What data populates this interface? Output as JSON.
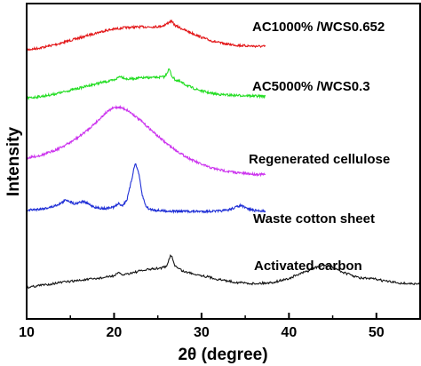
{
  "chart_data": {
    "type": "line",
    "xlabel": "2θ (degree)",
    "ylabel": "Intensity",
    "xlim": [
      10,
      55
    ],
    "ylim": [
      0,
      1
    ],
    "xticks": [
      10,
      20,
      30,
      40,
      50
    ],
    "grid": false,
    "legend": "labels next to each curve",
    "series": [
      {
        "name": "AC1000% /WCS0.652",
        "color": "#e31a1c",
        "x": [
          10,
          11,
          12,
          13,
          14,
          15,
          16,
          17,
          18,
          19,
          20,
          21,
          22,
          23,
          24,
          25,
          25.5,
          26,
          26.5,
          27,
          27.5,
          28,
          29,
          30,
          31,
          32,
          33,
          34,
          35,
          36,
          37.3
        ],
        "y": [
          0.853,
          0.857,
          0.862,
          0.868,
          0.875,
          0.883,
          0.891,
          0.899,
          0.907,
          0.914,
          0.919,
          0.923,
          0.925,
          0.926,
          0.926,
          0.927,
          0.929,
          0.935,
          0.945,
          0.93,
          0.924,
          0.917,
          0.905,
          0.893,
          0.883,
          0.876,
          0.871,
          0.868,
          0.866,
          0.865,
          0.864
        ]
      },
      {
        "name": "AC5000% /WCS0.3",
        "color": "#22dd22",
        "x": [
          10,
          11,
          12,
          13,
          14,
          15,
          16,
          17,
          18,
          19,
          20,
          20.7,
          21.5,
          22,
          23,
          24,
          25,
          25.8,
          26.3,
          26.6,
          27,
          27.5,
          28,
          29,
          30,
          31,
          32,
          33,
          34,
          35,
          36,
          37.3
        ],
        "y": [
          0.7,
          0.703,
          0.707,
          0.712,
          0.718,
          0.725,
          0.732,
          0.739,
          0.746,
          0.752,
          0.757,
          0.77,
          0.76,
          0.762,
          0.764,
          0.765,
          0.766,
          0.768,
          0.793,
          0.77,
          0.758,
          0.753,
          0.745,
          0.732,
          0.723,
          0.716,
          0.712,
          0.71,
          0.709,
          0.708,
          0.707,
          0.706
        ]
      },
      {
        "name": "Regenerated cellulose",
        "color": "#cc33ee",
        "x": [
          10,
          11,
          12,
          13,
          14,
          15,
          16,
          17,
          18,
          19,
          19.5,
          20,
          20.5,
          21,
          21.5,
          22,
          23,
          24,
          25,
          26,
          27,
          28,
          29,
          30,
          31,
          32,
          33,
          34,
          35,
          36,
          37.3
        ],
        "y": [
          0.51,
          0.515,
          0.522,
          0.532,
          0.545,
          0.56,
          0.578,
          0.6,
          0.625,
          0.652,
          0.662,
          0.67,
          0.672,
          0.668,
          0.662,
          0.652,
          0.63,
          0.605,
          0.58,
          0.556,
          0.536,
          0.518,
          0.503,
          0.49,
          0.48,
          0.473,
          0.468,
          0.464,
          0.461,
          0.459,
          0.458
        ]
      },
      {
        "name": "Waste cotton sheet",
        "color": "#1f2fd6",
        "x": [
          10,
          11,
          12,
          13,
          14,
          14.5,
          15,
          15.5,
          16,
          16.5,
          17,
          18,
          19,
          20,
          20.5,
          21,
          21.5,
          22,
          22.4,
          22.8,
          23.2,
          23.6,
          24,
          25,
          26,
          28,
          30,
          32,
          33,
          34,
          34.5,
          35,
          36,
          37.3
        ],
        "y": [
          0.345,
          0.347,
          0.35,
          0.356,
          0.368,
          0.378,
          0.372,
          0.365,
          0.37,
          0.372,
          0.365,
          0.352,
          0.35,
          0.355,
          0.365,
          0.36,
          0.38,
          0.44,
          0.495,
          0.465,
          0.395,
          0.36,
          0.348,
          0.344,
          0.342,
          0.341,
          0.341,
          0.342,
          0.345,
          0.355,
          0.36,
          0.352,
          0.344,
          0.342
        ]
      },
      {
        "name": "Activated carbon",
        "color": "#111111",
        "x": [
          10,
          12,
          14,
          16,
          18,
          19,
          20,
          20.5,
          21,
          22,
          23,
          24,
          25,
          26,
          26.5,
          27,
          27.5,
          28,
          30,
          32,
          34,
          36,
          38,
          40,
          41,
          42,
          43,
          44,
          45,
          46,
          47,
          48,
          49,
          50,
          51,
          52,
          53,
          55
        ],
        "y": [
          0.1,
          0.108,
          0.116,
          0.122,
          0.128,
          0.132,
          0.137,
          0.145,
          0.14,
          0.146,
          0.152,
          0.157,
          0.16,
          0.165,
          0.205,
          0.167,
          0.158,
          0.15,
          0.138,
          0.125,
          0.116,
          0.112,
          0.115,
          0.128,
          0.14,
          0.15,
          0.162,
          0.17,
          0.165,
          0.15,
          0.14,
          0.13,
          0.128,
          0.126,
          0.12,
          0.116,
          0.113,
          0.11
        ]
      }
    ]
  }
}
